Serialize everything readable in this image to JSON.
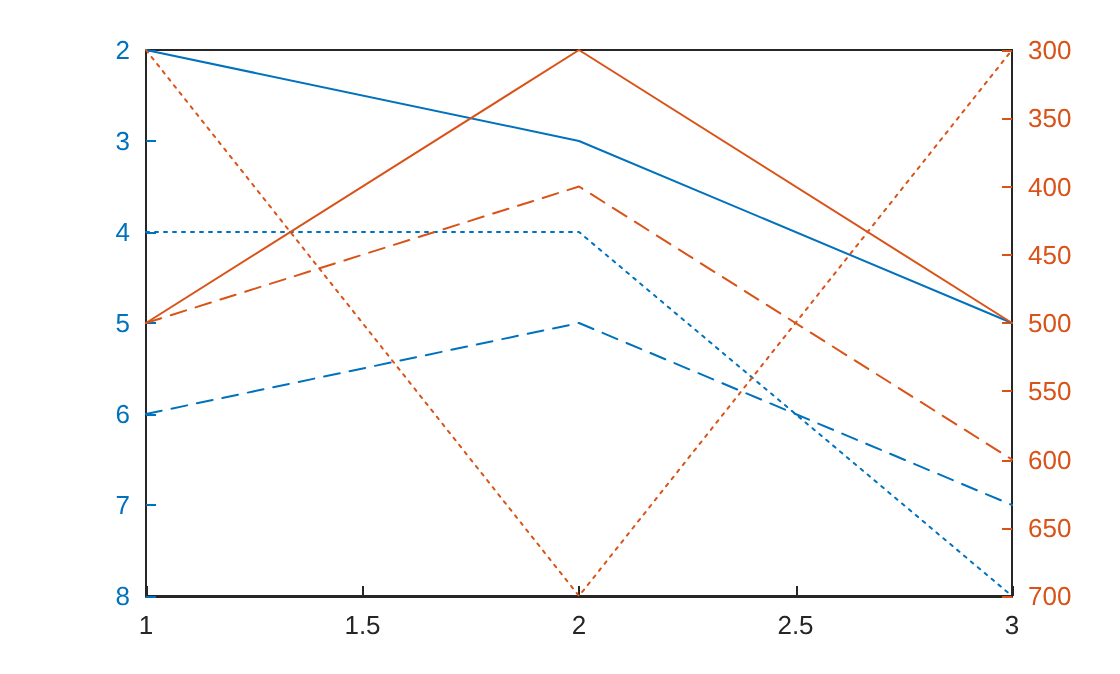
{
  "chart_data": {
    "type": "line",
    "x": [
      1,
      2,
      3
    ],
    "xlim": [
      1,
      3
    ],
    "xticks": [
      1,
      1.5,
      2,
      2.5,
      3
    ],
    "ylim": [
      8,
      2
    ],
    "yticks": [
      2,
      3,
      4,
      5,
      6,
      7,
      8
    ],
    "y2lim": [
      700,
      300
    ],
    "y2ticks": [
      300,
      350,
      400,
      450,
      500,
      550,
      600,
      650,
      700
    ],
    "grid": false,
    "marker": "none",
    "series": [
      {
        "color": "#0072bd",
        "line_style": "solid",
        "values": [
          2,
          3,
          5
        ]
      },
      {
        "color": "#0072bd",
        "line_style": "dotted",
        "values": [
          4,
          4,
          8
        ]
      },
      {
        "color": "#0072bd",
        "line_style": "dashed",
        "values": [
          6,
          5,
          7
        ]
      },
      {
        "color": "#d95319",
        "line_style": "solid",
        "axis": "y2",
        "values": [
          500,
          300,
          500
        ]
      },
      {
        "color": "#d95319",
        "line_style": "dashed",
        "axis": "y2",
        "values": [
          500,
          400,
          600
        ]
      },
      {
        "color": "#d95319",
        "line_style": "dotted",
        "axis": "y2",
        "values": [
          300,
          700,
          300
        ]
      }
    ]
  }
}
